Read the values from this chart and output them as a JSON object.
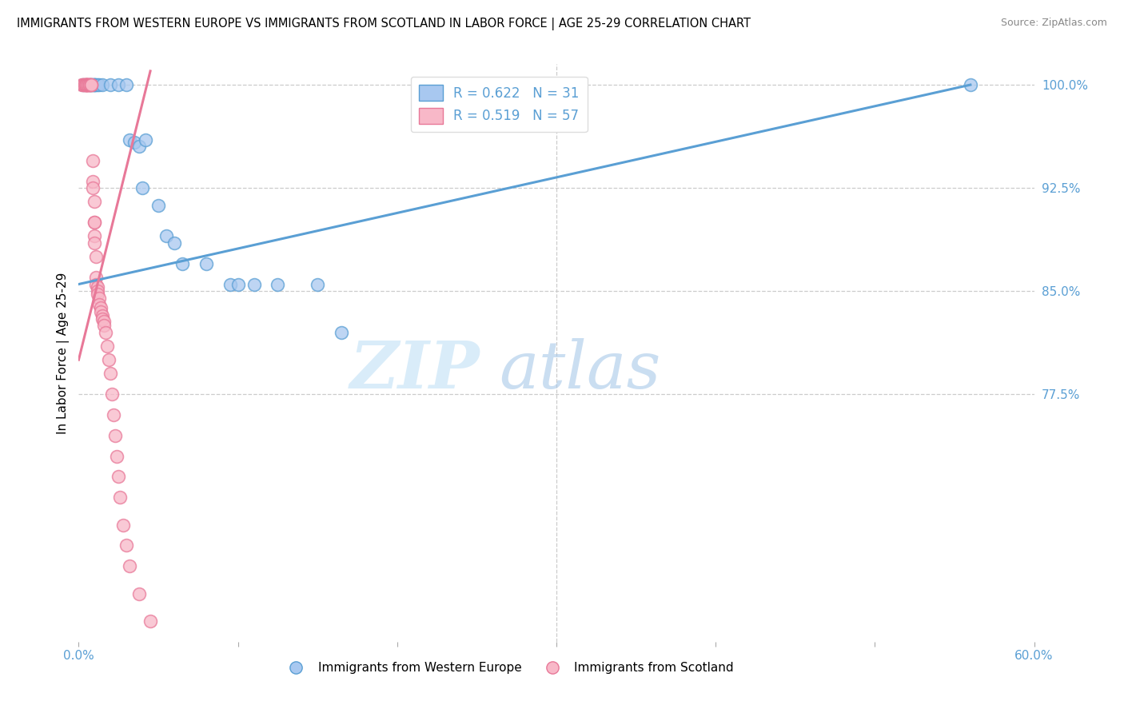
{
  "title": "IMMIGRANTS FROM WESTERN EUROPE VS IMMIGRANTS FROM SCOTLAND IN LABOR FORCE | AGE 25-29 CORRELATION CHART",
  "source": "Source: ZipAtlas.com",
  "ylabel": "In Labor Force | Age 25-29",
  "xlim": [
    0.0,
    0.6
  ],
  "ylim": [
    0.595,
    1.015
  ],
  "xticks": [
    0.0,
    0.1,
    0.2,
    0.3,
    0.4,
    0.5,
    0.6
  ],
  "xticklabels": [
    "0.0%",
    "",
    "",
    "",
    "",
    "",
    "60.0%"
  ],
  "yticks": [
    0.775,
    0.85,
    0.925,
    1.0
  ],
  "yticklabels": [
    "77.5%",
    "85.0%",
    "92.5%",
    "100.0%"
  ],
  "blue_color": "#a8c8f0",
  "pink_color": "#f8b8c8",
  "blue_edge_color": "#5a9fd4",
  "pink_edge_color": "#e87898",
  "blue_line_color": "#5a9fd4",
  "pink_line_color": "#e87898",
  "legend_blue_label": "R = 0.622   N = 31",
  "legend_pink_label": "R = 0.519   N = 57",
  "legend_label_blue": "Immigrants from Western Europe",
  "legend_label_pink": "Immigrants from Scotland",
  "watermark_zip": "ZIP",
  "watermark_atlas": "atlas",
  "blue_scatter_x": [
    0.003,
    0.007,
    0.008,
    0.009,
    0.01,
    0.01,
    0.01,
    0.011,
    0.012,
    0.013,
    0.015,
    0.02,
    0.025,
    0.03,
    0.032,
    0.035,
    0.038,
    0.04,
    0.042,
    0.05,
    0.055,
    0.06,
    0.065,
    0.08,
    0.095,
    0.1,
    0.11,
    0.125,
    0.15,
    0.165,
    0.56
  ],
  "blue_scatter_y": [
    1.0,
    1.0,
    1.0,
    1.0,
    1.0,
    1.0,
    1.0,
    1.0,
    1.0,
    1.0,
    1.0,
    1.0,
    1.0,
    1.0,
    0.96,
    0.958,
    0.955,
    0.925,
    0.96,
    0.912,
    0.89,
    0.885,
    0.87,
    0.87,
    0.855,
    0.855,
    0.855,
    0.855,
    0.855,
    0.82,
    1.0
  ],
  "pink_scatter_x": [
    0.002,
    0.003,
    0.003,
    0.004,
    0.004,
    0.005,
    0.005,
    0.005,
    0.005,
    0.005,
    0.005,
    0.006,
    0.006,
    0.006,
    0.007,
    0.007,
    0.007,
    0.008,
    0.008,
    0.008,
    0.009,
    0.009,
    0.009,
    0.01,
    0.01,
    0.01,
    0.01,
    0.01,
    0.011,
    0.011,
    0.011,
    0.012,
    0.012,
    0.012,
    0.013,
    0.013,
    0.014,
    0.014,
    0.015,
    0.015,
    0.016,
    0.016,
    0.017,
    0.018,
    0.019,
    0.02,
    0.021,
    0.022,
    0.023,
    0.024,
    0.025,
    0.026,
    0.028,
    0.03,
    0.032,
    0.038,
    0.045
  ],
  "pink_scatter_y": [
    1.0,
    1.0,
    1.0,
    1.0,
    1.0,
    1.0,
    1.0,
    1.0,
    1.0,
    1.0,
    1.0,
    1.0,
    1.0,
    1.0,
    1.0,
    1.0,
    1.0,
    1.0,
    1.0,
    1.0,
    0.945,
    0.93,
    0.925,
    0.915,
    0.9,
    0.9,
    0.89,
    0.885,
    0.875,
    0.86,
    0.855,
    0.853,
    0.85,
    0.848,
    0.845,
    0.84,
    0.838,
    0.835,
    0.832,
    0.83,
    0.828,
    0.825,
    0.82,
    0.81,
    0.8,
    0.79,
    0.775,
    0.76,
    0.745,
    0.73,
    0.715,
    0.7,
    0.68,
    0.665,
    0.65,
    0.63,
    0.61
  ],
  "blue_trendline_x": [
    0.0,
    0.56
  ],
  "blue_trendline_y": [
    0.855,
    1.0
  ],
  "pink_trendline_x": [
    0.0,
    0.045
  ],
  "pink_trendline_y": [
    0.8,
    1.01
  ],
  "grid_color": "#cccccc",
  "hline_y": 0.775
}
